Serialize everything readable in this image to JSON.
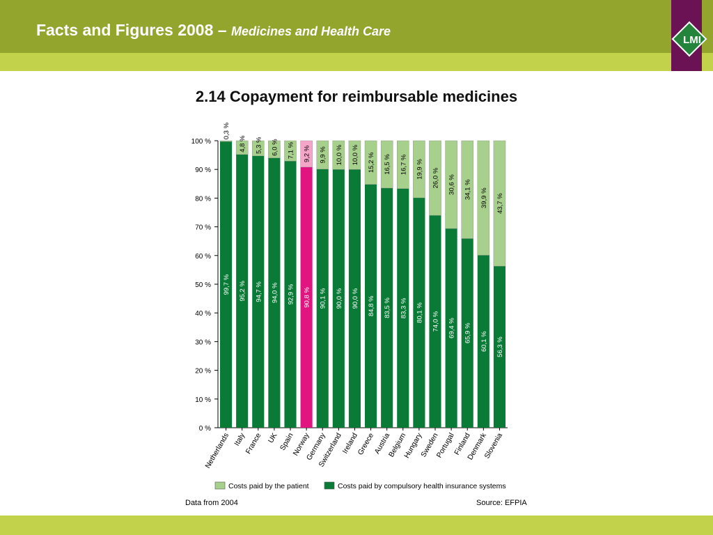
{
  "header": {
    "title": "Facts and Figures 2008 –",
    "subtitle": "Medicines and Health Care",
    "logo": "LMI"
  },
  "colors": {
    "header_dark": "#93a52c",
    "header_light": "#c3d24b",
    "logo_bg": "#6b1254",
    "logo_green": "#25843b",
    "insurance": "#0a7a37",
    "patient": "#a8d08d",
    "highlight_insurance": "#e0157f",
    "highlight_patient": "#f5a6c8"
  },
  "chart_data": {
    "type": "bar",
    "stacked": true,
    "title": "2.14 Copayment for reimbursable medicines",
    "categories": [
      "Netherlands",
      "Italy",
      "France",
      "UK",
      "Spain",
      "Norway",
      "Germany",
      "Switzerland",
      "Ireland",
      "Greece",
      "Austria",
      "Belgium",
      "Hungary",
      "Sweden",
      "Portugal",
      "Finland",
      "Denmark",
      "Slovenia"
    ],
    "highlight_category": "Norway",
    "series": [
      {
        "name": "Costs paid by compulsory health insurance systems",
        "values": [
          99.7,
          95.2,
          94.7,
          94.0,
          92.9,
          90.8,
          90.1,
          90.0,
          90.0,
          84.8,
          83.5,
          83.3,
          80.1,
          74.0,
          69.4,
          65.9,
          60.1,
          56.3
        ],
        "labels": [
          "99,7 %",
          "95,2 %",
          "94,7 %",
          "94,0 %",
          "92,9 %",
          "90,8 %",
          "90,1 %",
          "90,0 %",
          "90,0 %",
          "84,8 %",
          "83,5 %",
          "83,3 %",
          "80,1 %",
          "74,0 %",
          "69,4 %",
          "65,9 %",
          "60,1 %",
          "56,3 %"
        ]
      },
      {
        "name": "Costs paid by the patient",
        "values": [
          0.3,
          4.8,
          5.3,
          6.0,
          7.1,
          9.2,
          9.9,
          10.0,
          10.0,
          15.2,
          16.5,
          16.7,
          19.9,
          26.0,
          30.6,
          34.1,
          39.9,
          43.7
        ],
        "labels": [
          "0,3 %",
          "4,8 %",
          "5,3 %",
          "6,0 %",
          "7,1 %",
          "9,2 %",
          "9,9 %",
          "10,0 %",
          "10,0 %",
          "15,2 %",
          "16,5 %",
          "16,7 %",
          "19,9 %",
          "26,0 %",
          "30,6 %",
          "34,1 %",
          "39,9 %",
          "43,7 %"
        ]
      }
    ],
    "ylim": [
      0,
      100
    ],
    "yticks": [
      0,
      10,
      20,
      30,
      40,
      50,
      60,
      70,
      80,
      90,
      100
    ],
    "ytick_labels": [
      "0 %",
      "10 %",
      "20 %",
      "30 %",
      "40 %",
      "50 %",
      "60 %",
      "70 %",
      "80 %",
      "90 %",
      "100 %"
    ],
    "xlabel": "",
    "ylabel": "",
    "grid": false,
    "legend": {
      "position": "bottom",
      "entries": [
        "Costs paid by the patient",
        "Costs paid by compulsory health insurance systems"
      ]
    }
  },
  "footer": {
    "note": "Data from 2004",
    "source": "Source: EFPIA"
  }
}
